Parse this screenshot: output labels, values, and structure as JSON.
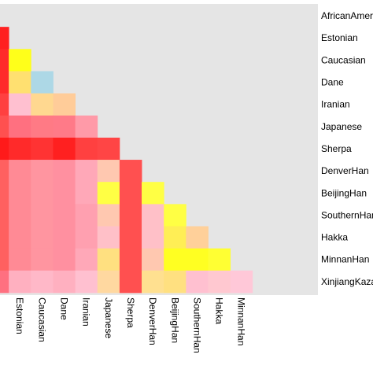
{
  "chart_data": {
    "type": "heatmap",
    "title": "",
    "xlabel": "",
    "ylabel": "",
    "grid": false,
    "colors": {
      "panel_background": "#e5e5e5",
      "empty_cell": "#e5e5e5",
      "scale": [
        "#ff0000",
        "#ff6060",
        "#ffa0b0",
        "#ffc8c8",
        "#ffd88a",
        "#ffff33",
        "#add8e6"
      ]
    },
    "row_labels": [
      "AfricanAmerican",
      "Estonian",
      "Caucasian",
      "Dane",
      "Iranian",
      "Japanese",
      "Sherpa",
      "DenverHan",
      "BeijingHan",
      "SouthernHan",
      "Hakka",
      "MinnanHan",
      "XinjiangKazak"
    ],
    "col_labels": [
      "AfricanAmerican",
      "Estonian",
      "Caucasian",
      "Dane",
      "Iranian",
      "Japanese",
      "Sherpa",
      "DenverHan",
      "BeijingHan",
      "SouthernHan",
      "Hakka",
      "MinnanHan"
    ],
    "visible_col_labels": [
      "Estonian",
      "Caucasian",
      "Dane",
      "Iranian",
      "Japanese",
      "Sherpa",
      "DenverHan",
      "BeijingHan",
      "SouthernHan",
      "Hakka",
      "MinnanHan"
    ],
    "cells": [
      [],
      [
        "#ff2020"
      ],
      [
        "#ff2a2a",
        "#ffff1a"
      ],
      [
        "#ff2a2a",
        "#ffe070",
        "#add8e6"
      ],
      [
        "#ff4040",
        "#ffc0d0",
        "#ffd890",
        "#ffcc99"
      ],
      [
        "#ff5050",
        "#ff7080",
        "#ff7a85",
        "#ff7a88",
        "#ff9aa8"
      ],
      [
        "#ff1a1a",
        "#ff2a2a",
        "#ff3333",
        "#ff2020",
        "#ff4040",
        "#ff4545"
      ],
      [
        "#ff6060",
        "#ff8a95",
        "#ff95a0",
        "#ff90a0",
        "#ffa8b8",
        "#ffc8b0",
        "#ff5050"
      ],
      [
        "#ff6060",
        "#ff8a95",
        "#ff95a0",
        "#ff90a0",
        "#ffa8b8",
        "#ffff44",
        "#ff5050",
        "#ffff44"
      ],
      [
        "#ff6060",
        "#ff8a95",
        "#ff95a0",
        "#ff90a0",
        "#ffa0b0",
        "#ffc8b0",
        "#ff5050",
        "#ffc0c8",
        "#ffff44"
      ],
      [
        "#ff6060",
        "#ff8a95",
        "#ff95a0",
        "#ff90a0",
        "#ffa0b0",
        "#ffc0c8",
        "#ff5050",
        "#ffc0c8",
        "#ffee55",
        "#ffd09a"
      ],
      [
        "#ff6060",
        "#ff8a95",
        "#ff95a0",
        "#ff90a0",
        "#ffa8b8",
        "#ffe080",
        "#ff5050",
        "#ffc8b0",
        "#ffff22",
        "#ffff22",
        "#ffff33"
      ],
      [
        "#ff7080",
        "#ffb0c0",
        "#ffb8c8",
        "#ffb0c0",
        "#ffc0d0",
        "#ffd8a0",
        "#ff5050",
        "#ffe090",
        "#ffe080",
        "#ffc0d0",
        "#ffc8d0",
        "#ffc8d8"
      ]
    ]
  }
}
